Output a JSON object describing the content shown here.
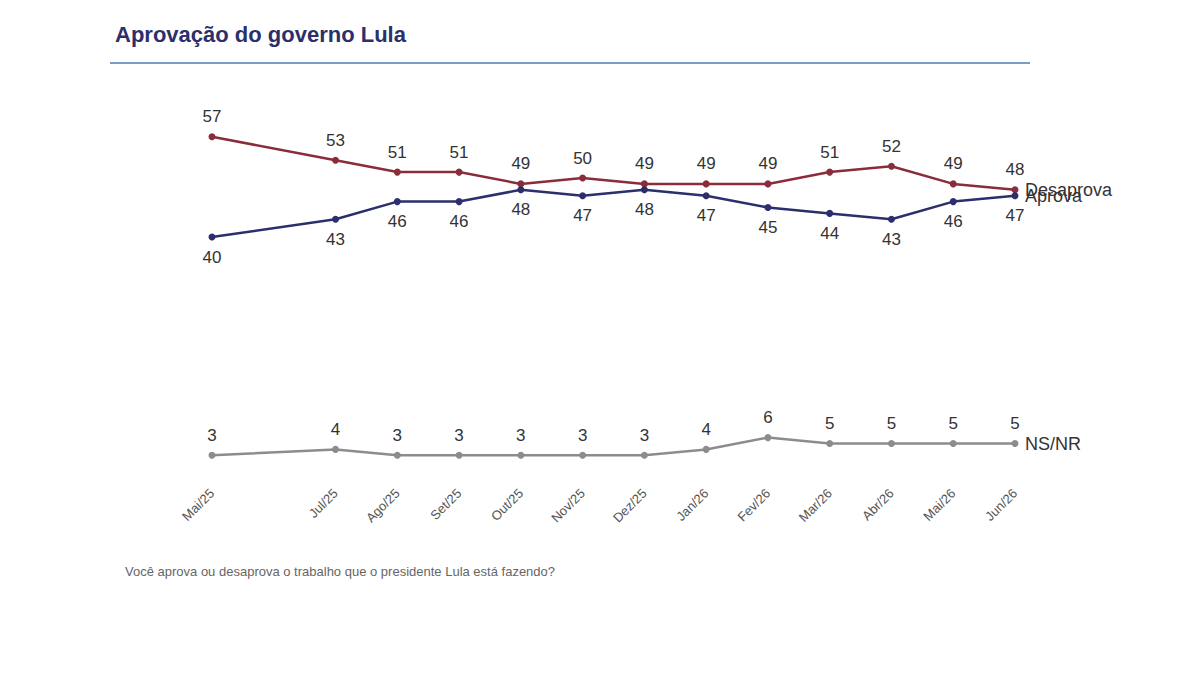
{
  "chart_data": {
    "type": "line",
    "title": "Aprovação do governo Lula",
    "subtitle": "Você aprova ou desaprova o trabalho que o presidente Lula está fazendo?",
    "categories": [
      "Mai/25",
      null,
      "Jul/25",
      "Ago/25",
      "Set/25",
      "Out/25",
      "Nov/25",
      "Dez/25",
      "Jan/26",
      "Fev/26",
      "Mar/26",
      "Abr/26",
      "Mai/26",
      "Jun/26"
    ],
    "series": [
      {
        "name": "Desaprova",
        "color": "#8a2d3b",
        "values": [
          57,
          null,
          53,
          51,
          51,
          49,
          50,
          49,
          49,
          49,
          51,
          52,
          49,
          48
        ]
      },
      {
        "name": "Aprova",
        "color": "#2b2f6b",
        "values": [
          40,
          null,
          43,
          46,
          46,
          48,
          47,
          48,
          47,
          45,
          44,
          43,
          46,
          47
        ]
      },
      {
        "name": "NS/NR",
        "color": "#8c8c8c",
        "values": [
          3,
          null,
          4,
          3,
          3,
          3,
          3,
          3,
          4,
          6,
          5,
          5,
          5,
          5
        ]
      }
    ],
    "ylim": [
      0,
      60
    ],
    "grid": false,
    "data_labels": true,
    "tick_labels": "x",
    "marker": "circle"
  }
}
